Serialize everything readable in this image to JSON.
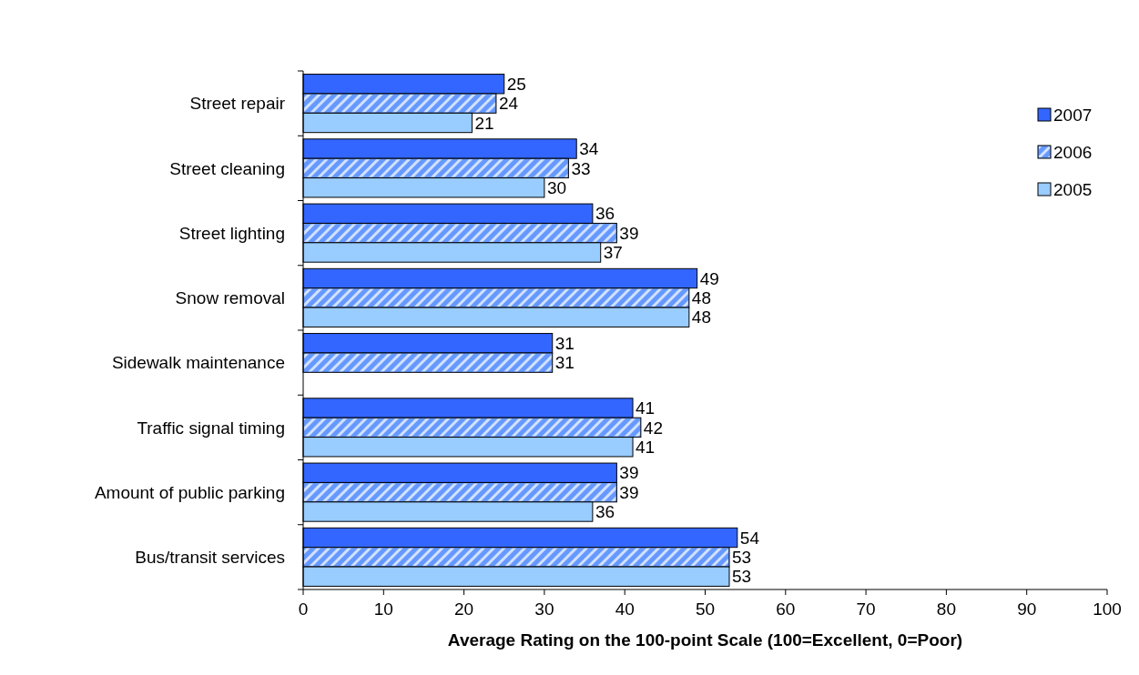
{
  "chart_data": {
    "type": "bar",
    "orientation": "horizontal",
    "xlabel": "Average Rating on the 100-point Scale (100=Excellent, 0=Poor)",
    "categories": [
      "Street repair",
      "Street cleaning",
      "Street lighting",
      "Snow removal",
      "Sidewalk maintenance",
      "Traffic signal timing",
      "Amount of public parking",
      "Bus/transit services"
    ],
    "series": [
      {
        "name": "2007",
        "color": "#3366ff",
        "values": [
          25,
          34,
          36,
          49,
          31,
          41,
          39,
          54
        ]
      },
      {
        "name": "2006",
        "color": "#6699ff",
        "values": [
          24,
          33,
          39,
          48,
          31,
          42,
          39,
          53
        ]
      },
      {
        "name": "2005",
        "color": "#99ccff",
        "values": [
          21,
          30,
          37,
          48,
          null,
          41,
          36,
          53
        ]
      }
    ],
    "xlim": [
      0,
      100
    ],
    "xticks": [
      0,
      10,
      20,
      30,
      40,
      50,
      60,
      70,
      80,
      90,
      100
    ],
    "data_labels": true,
    "grid": false,
    "legend": "top right"
  }
}
